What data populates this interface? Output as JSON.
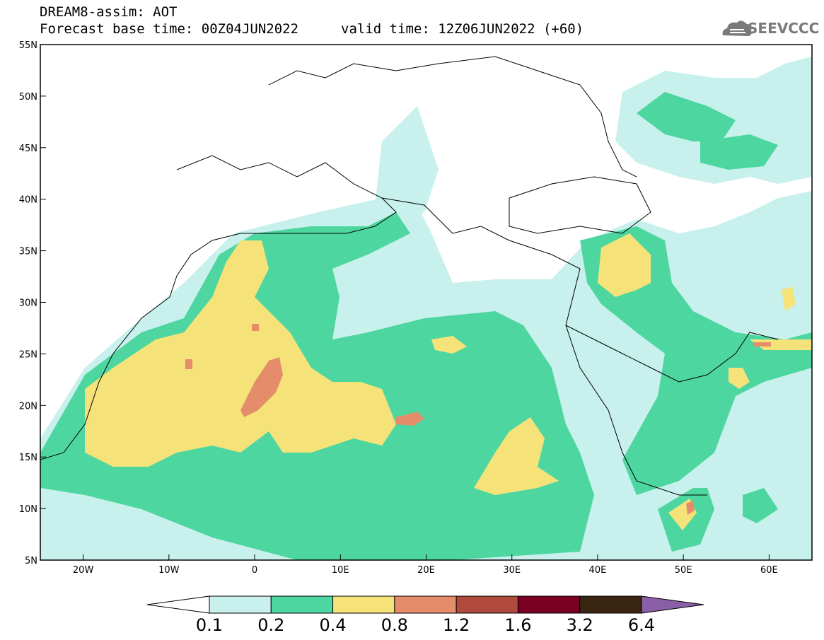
{
  "header": {
    "line1": "DREAM8-assim: AOT",
    "line2a": "Forecast base time: 00Z04JUN2022",
    "line2b": "valid time: 12Z06JUN2022 (+60)"
  },
  "logo": {
    "text": "SEEVCCC",
    "icon": "cloud-icon"
  },
  "map": {
    "lat_range": [
      5,
      55
    ],
    "lon_range": [
      -25,
      65
    ],
    "lat_ticks": [
      "55N",
      "50N",
      "45N",
      "40N",
      "35N",
      "30N",
      "25N",
      "20N",
      "15N",
      "10N",
      "5N"
    ],
    "lon_ticks": [
      "20W",
      "10W",
      "0",
      "10E",
      "20E",
      "30E",
      "40E",
      "50E",
      "60E"
    ],
    "lat_values": [
      55,
      50,
      45,
      40,
      35,
      30,
      25,
      20,
      15,
      10,
      5
    ],
    "lon_values": [
      -20,
      -10,
      0,
      10,
      20,
      30,
      40,
      50,
      60
    ]
  },
  "colorbar": {
    "labels": [
      "0.1",
      "0.2",
      "0.4",
      "0.8",
      "1.2",
      "1.6",
      "3.2",
      "6.4"
    ],
    "colors": [
      "#ffffff",
      "#c8f0ec",
      "#4dd6a0",
      "#f5e37a",
      "#e58c6b",
      "#b04a3c",
      "#7a0022",
      "#3a2412",
      "#8a5fa8"
    ]
  }
}
